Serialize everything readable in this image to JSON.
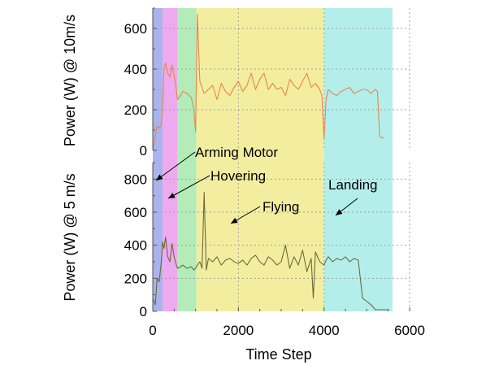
{
  "chart_data": {
    "type": "line",
    "xlabel": "Time Step",
    "xlim": [
      0,
      6000
    ],
    "x_ticks": [
      0,
      2000,
      4000,
      6000
    ],
    "x_tick_labels": [
      "0",
      "2000",
      "4000",
      "6000"
    ],
    "phases": [
      {
        "range": [
          0,
          230
        ],
        "color": "#a9b3ec"
      },
      {
        "range": [
          230,
          570
        ],
        "color": "#eeaaee"
      },
      {
        "range": [
          570,
          1020
        ],
        "color": "#b3ecb8"
      },
      {
        "range": [
          1020,
          4000
        ],
        "color": "#f3ee9f"
      },
      {
        "range": [
          4000,
          5600
        ],
        "color": "#b4eeea"
      }
    ],
    "annotations": [
      {
        "label": "Arming Motor"
      },
      {
        "label": "Hovering"
      },
      {
        "label": "Flying"
      },
      {
        "label": "Landing"
      }
    ],
    "panels": [
      {
        "ylabel": "Power (W)  @ 10m/s",
        "ylim": [
          0,
          700
        ],
        "y_ticks": [
          0,
          200,
          400,
          600
        ],
        "y_tick_labels": [
          "0",
          "200",
          "400",
          "600"
        ],
        "grid": true,
        "series": [
          {
            "color": "#e8854f",
            "x": [
              0,
              60,
              100,
              150,
              200,
              230,
              260,
              300,
              350,
              400,
              450,
              500,
              550,
              580,
              650,
              700,
              800,
              900,
              960,
              1000,
              1040,
              1100,
              1200,
              1300,
              1400,
              1500,
              1600,
              1700,
              1800,
              1900,
              2000,
              2100,
              2200,
              2300,
              2400,
              2500,
              2600,
              2700,
              2800,
              2900,
              3000,
              3100,
              3200,
              3300,
              3400,
              3500,
              3600,
              3700,
              3800,
              3900,
              3950,
              4000,
              4050,
              4100,
              4200,
              4300,
              4400,
              4500,
              4600,
              4700,
              4800,
              4900,
              5000,
              5100,
              5200,
              5250,
              5300,
              5350,
              5400
            ],
            "y": [
              0,
              70,
              120,
              110,
              130,
              200,
              400,
              430,
              380,
              360,
              420,
              370,
              300,
              250,
              270,
              290,
              280,
              260,
              200,
              90,
              670,
              340,
              280,
              300,
              320,
              250,
              330,
              290,
              270,
              310,
              340,
              290,
              320,
              380,
              300,
              350,
              380,
              300,
              330,
              300,
              310,
              270,
              350,
              320,
              300,
              340,
              380,
              310,
              330,
              300,
              270,
              60,
              250,
              300,
              280,
              270,
              290,
              300,
              310,
              280,
              290,
              300,
              300,
              280,
              300,
              290,
              70,
              60,
              65
            ]
          }
        ]
      },
      {
        "ylabel": "Power (W)  @ 5 m/s",
        "ylim": [
          0,
          900
        ],
        "y_ticks": [
          0,
          200,
          400,
          600,
          800
        ],
        "y_tick_labels": [
          "0",
          "200",
          "400",
          "600",
          "800"
        ],
        "grid": true,
        "series": [
          {
            "color": "#6e6a3e",
            "x": [
              0,
              60,
              100,
              150,
              200,
              230,
              260,
              300,
              350,
              400,
              450,
              500,
              550,
              580,
              650,
              700,
              800,
              900,
              960,
              1000,
              1040,
              1100,
              1150,
              1200,
              1250,
              1300,
              1400,
              1500,
              1600,
              1700,
              1800,
              1900,
              2000,
              2100,
              2200,
              2300,
              2400,
              2500,
              2600,
              2700,
              2800,
              2900,
              3000,
              3100,
              3200,
              3300,
              3400,
              3500,
              3600,
              3700,
              3750,
              3800,
              3900,
              4000,
              4050,
              4100,
              4200,
              4300,
              4400,
              4500,
              4600,
              4700,
              4800,
              4900,
              5000,
              5100,
              5200,
              5300,
              5400,
              5500
            ],
            "y": [
              80,
              40,
              200,
              180,
              300,
              420,
              380,
              450,
              330,
              300,
              410,
              330,
              280,
              260,
              270,
              280,
              260,
              270,
              250,
              260,
              280,
              300,
              260,
              720,
              250,
              320,
              300,
              330,
              280,
              310,
              320,
              300,
              290,
              310,
              280,
              320,
              340,
              300,
              280,
              330,
              310,
              280,
              300,
              400,
              260,
              330,
              280,
              370,
              240,
              320,
              80,
              360,
              300,
              280,
              310,
              330,
              300,
              320,
              310,
              330,
              300,
              320,
              310,
              80,
              60,
              40,
              10,
              10,
              10,
              10
            ]
          }
        ]
      }
    ]
  }
}
